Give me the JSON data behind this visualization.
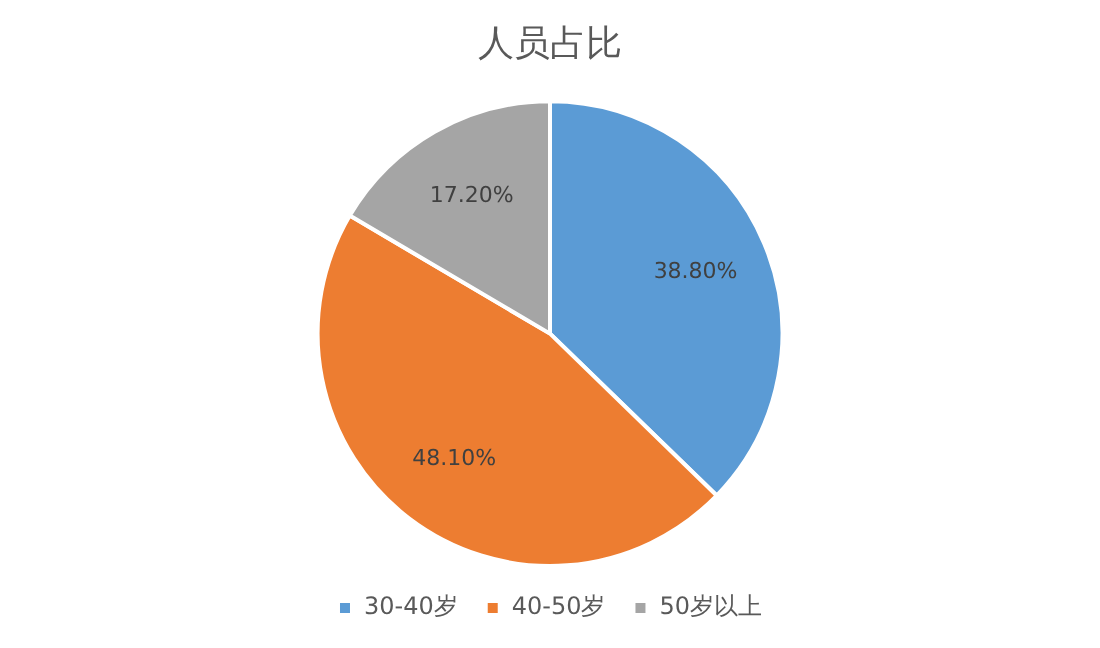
{
  "chart_data": {
    "type": "pie",
    "title": "人员占比",
    "categories": [
      "30-40岁",
      "40-50岁",
      "50岁以上"
    ],
    "values": [
      38.8,
      48.1,
      17.2
    ],
    "value_labels": [
      "38.80%",
      "48.10%",
      "17.20%"
    ],
    "colors": [
      "#5b9bd5",
      "#ed7d31",
      "#a5a5a5"
    ],
    "legend": "bottom"
  }
}
